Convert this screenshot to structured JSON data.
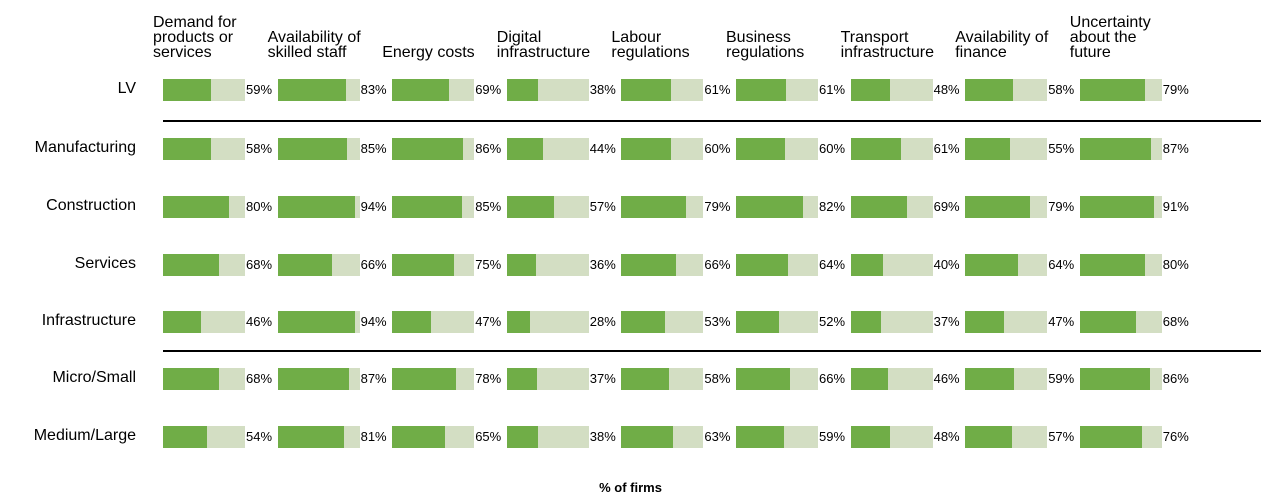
{
  "chart_data": {
    "type": "bar",
    "categories": [
      "LV",
      "Manufacturing",
      "Construction",
      "Services",
      "Infrastructure",
      "Micro/Small",
      "Medium/Large"
    ],
    "xlim": [
      0,
      100
    ],
    "remainder_color": "#d3dec3",
    "xlabel": "% of firms",
    "series": [
      {
        "name": "Demand for products or services",
        "color": "#70ad47",
        "values": [
          59,
          58,
          80,
          68,
          46,
          68,
          54
        ],
        "value_labels": [
          "59%",
          "58%",
          "80%",
          "68%",
          "46%",
          "68%",
          "54%"
        ]
      },
      {
        "name": "Availability of skilled staff",
        "color": "#70ad47",
        "values": [
          83,
          85,
          94,
          66,
          94,
          87,
          81
        ],
        "value_labels": [
          "83%",
          "85%",
          "94%",
          "66%",
          "94%",
          "87%",
          "81%"
        ]
      },
      {
        "name": "Energy costs",
        "color": "#70ad47",
        "values": [
          69,
          86,
          85,
          75,
          47,
          78,
          65
        ],
        "value_labels": [
          "69%",
          "86%",
          "85%",
          "75%",
          "47%",
          "78%",
          "65%"
        ]
      },
      {
        "name": "Digital infrastructure",
        "color": "#70ad47",
        "values": [
          38,
          44,
          57,
          36,
          28,
          37,
          38
        ],
        "value_labels": [
          "38%",
          "44%",
          "57%",
          "36%",
          "28%",
          "37%",
          "38%"
        ]
      },
      {
        "name": "Labour regulations",
        "color": "#70ad47",
        "values": [
          61,
          60,
          79,
          66,
          53,
          58,
          63
        ],
        "value_labels": [
          "61%",
          "60%",
          "79%",
          "66%",
          "53%",
          "58%",
          "63%"
        ]
      },
      {
        "name": "Business regulations",
        "color": "#70ad47",
        "values": [
          61,
          60,
          82,
          64,
          52,
          66,
          59
        ],
        "value_labels": [
          "61%",
          "60%",
          "82%",
          "64%",
          "52%",
          "66%",
          "59%"
        ]
      },
      {
        "name": "Transport infrastructure",
        "color": "#70ad47",
        "values": [
          48,
          61,
          69,
          40,
          37,
          46,
          48
        ],
        "value_labels": [
          "48%",
          "61%",
          "69%",
          "40%",
          "37%",
          "46%",
          "48%"
        ]
      },
      {
        "name": "Availability of finance",
        "color": "#70ad47",
        "values": [
          58,
          55,
          79,
          64,
          47,
          59,
          57
        ],
        "value_labels": [
          "58%",
          "55%",
          "79%",
          "64%",
          "47%",
          "59%",
          "57%"
        ]
      },
      {
        "name": "Uncertainty about the future",
        "color": "#70ad47",
        "values": [
          79,
          87,
          91,
          80,
          68,
          86,
          76
        ],
        "value_labels": [
          "79%",
          "87%",
          "91%",
          "80%",
          "68%",
          "86%",
          "76%"
        ]
      }
    ]
  }
}
